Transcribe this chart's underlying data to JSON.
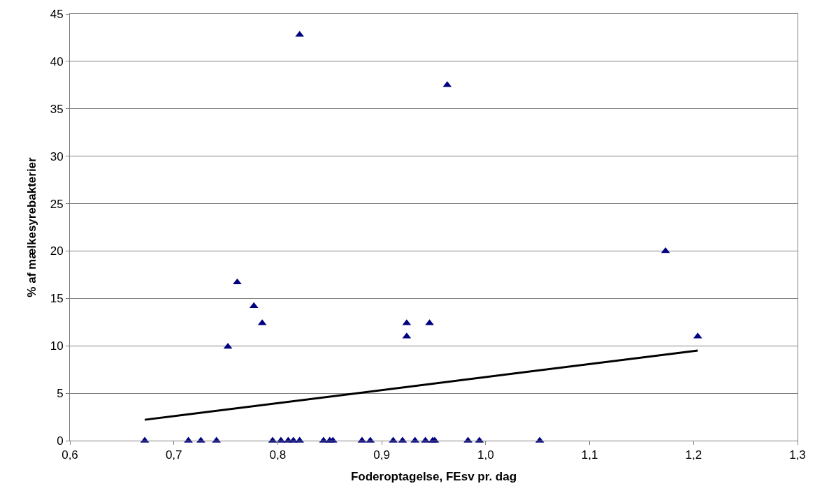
{
  "chart_data": {
    "type": "scatter",
    "xlabel": "Foderoptagelse, FEsv pr. dag",
    "ylabel": "% af mælkesyrebakterier",
    "xlim": [
      0.6,
      1.3
    ],
    "xticks": [
      {
        "value": 0.6,
        "label": "0,6"
      },
      {
        "value": 0.7,
        "label": "0,7"
      },
      {
        "value": 0.8,
        "label": "0,8"
      },
      {
        "value": 0.9,
        "label": "0,9"
      },
      {
        "value": 1.0,
        "label": "1,0"
      },
      {
        "value": 1.1,
        "label": "1,1"
      },
      {
        "value": 1.2,
        "label": "1,2"
      },
      {
        "value": 1.3,
        "label": "1,3"
      }
    ],
    "ylim": [
      0,
      45
    ],
    "yticks": [
      0,
      5,
      10,
      15,
      20,
      25,
      30,
      35,
      40,
      45
    ],
    "grid": "y",
    "legend": false,
    "series": [
      {
        "marker": "triangle",
        "color": "#000080",
        "x": [
          0.672,
          0.714,
          0.726,
          0.741,
          0.795,
          0.803,
          0.81,
          0.815,
          0.821,
          0.844,
          0.85,
          0.853,
          0.881,
          0.889,
          0.911,
          0.92,
          0.932,
          0.942,
          0.949,
          0.951,
          0.983,
          0.994,
          1.052,
          0.821,
          0.963,
          1.173,
          0.761,
          0.777,
          0.785,
          0.752,
          0.924,
          0.924,
          0.946,
          1.204
        ],
        "values": [
          0,
          0,
          0,
          0,
          0,
          0,
          0,
          0,
          0,
          0,
          0,
          0,
          0,
          0,
          0,
          0,
          0,
          0,
          0,
          0,
          0,
          0,
          0,
          42.8,
          37.5,
          20.0,
          16.7,
          14.2,
          12.4,
          9.9,
          12.4,
          11.0,
          12.4,
          11.0
        ]
      },
      {
        "type": "line",
        "color": "#000000",
        "line_style": "solid",
        "x": [
          0.672,
          1.204
        ],
        "values": [
          2.2,
          9.5
        ]
      }
    ]
  }
}
